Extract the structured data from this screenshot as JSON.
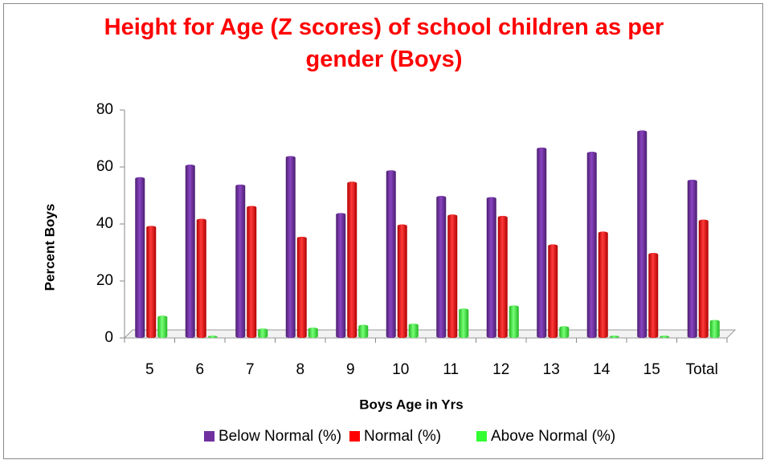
{
  "chart_data": {
    "type": "bar",
    "title": "Height for Age (Z scores) of school children as per gender (Boys)",
    "x_label": "Boys Age in Yrs",
    "y_label": "Percent Boys",
    "categories": [
      "5",
      "6",
      "7",
      "8",
      "9",
      "10",
      "11",
      "12",
      "13",
      "14",
      "15",
      "Total"
    ],
    "series": [
      {
        "name": "Below Normal (%)",
        "color": "#7030a0",
        "values": [
          55.6,
          60,
          53,
          63,
          43,
          58,
          49,
          48.6,
          66,
          64.5,
          72,
          54.7
        ]
      },
      {
        "name": "Normal (%)",
        "color": "#ff0000",
        "values": [
          38.5,
          41,
          45.5,
          34.7,
          54,
          39,
          42.5,
          42,
          32,
          36.5,
          29,
          40.7
        ]
      },
      {
        "name": "Above Normal (%)",
        "color": "#33ff33",
        "values": [
          7,
          0,
          2.5,
          2.8,
          3.8,
          4.2,
          9.5,
          10.6,
          3.3,
          0,
          0,
          5.5
        ]
      }
    ],
    "ylim": [
      0,
      80
    ],
    "yticks": [
      0,
      20,
      40,
      60,
      80
    ],
    "legend": "bottom"
  }
}
